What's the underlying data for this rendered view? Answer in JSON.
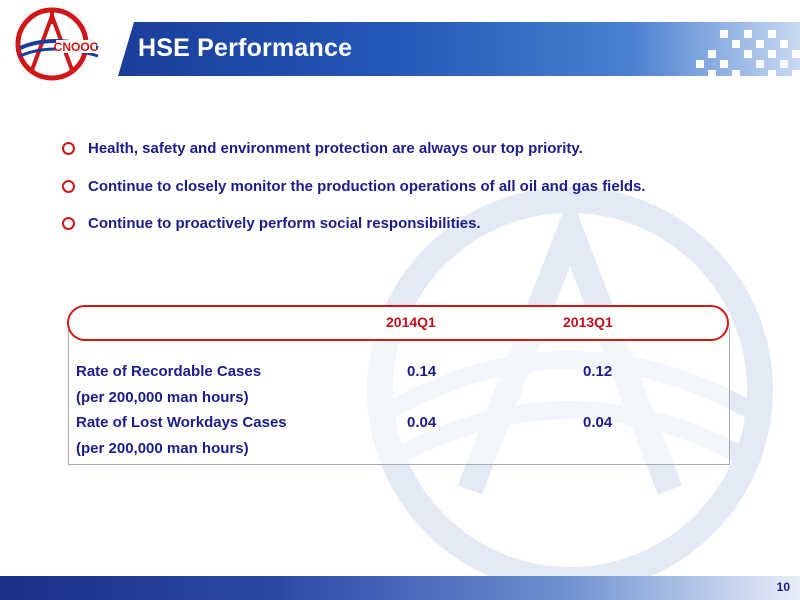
{
  "header": {
    "title": "HSE Performance",
    "logo_text": "CNOOC"
  },
  "bullets": [
    "Health, safety and environment protection are always our top priority.",
    "Continue to closely monitor the production operations of all oil and gas fields.",
    "Continue to proactively perform social responsibilities."
  ],
  "table": {
    "columns": [
      "2014Q1",
      "2013Q1"
    ],
    "rows": [
      {
        "label": "Rate of Recordable Cases",
        "note": "(per 200,000 man hours)",
        "values": [
          "0.14",
          "0.12"
        ]
      },
      {
        "label": "Rate of Lost Workdays Cases",
        "note": "(per 200,000 man hours)",
        "values": [
          "0.04",
          "0.04"
        ]
      }
    ]
  },
  "footer": {
    "page_number": "10"
  },
  "colors": {
    "brand_blue": "#2457b8",
    "text_navy": "#1a1d8c",
    "accent_red": "#d01818"
  }
}
